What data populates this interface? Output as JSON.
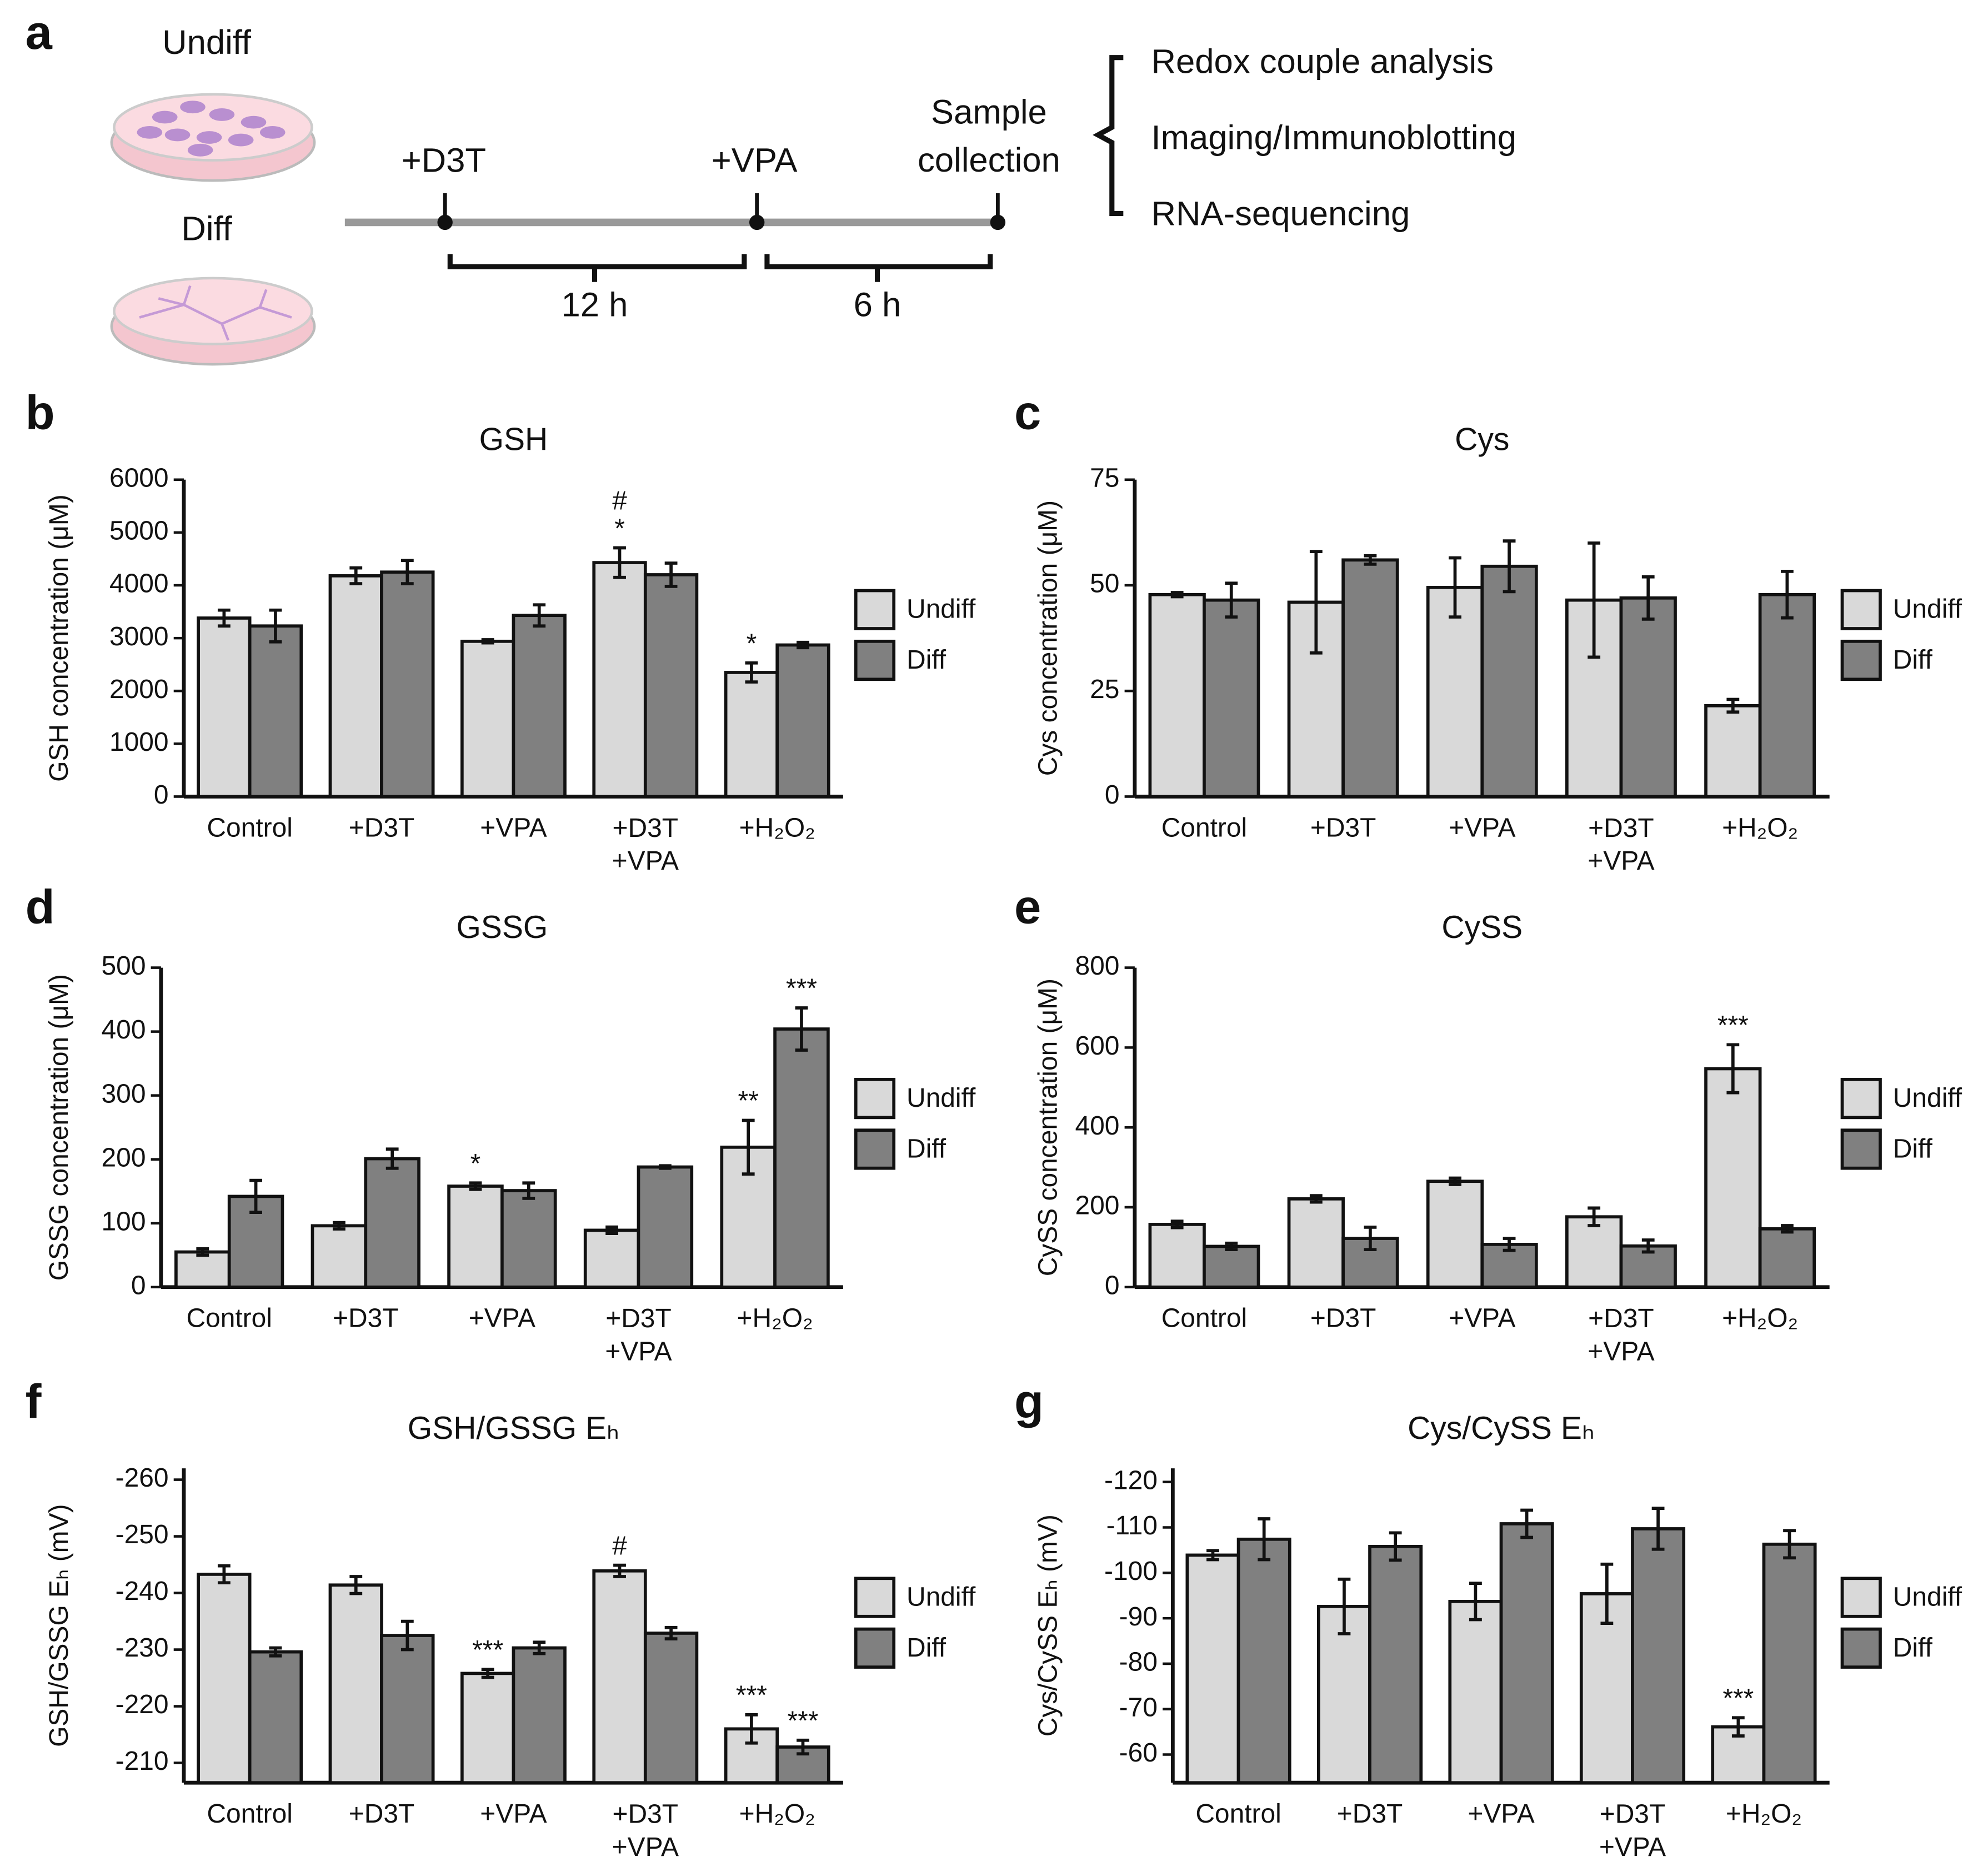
{
  "panel_a": {
    "panel": "a",
    "dish_labels": [
      "Undiff",
      "Diff"
    ],
    "steps": [
      "+D3T",
      "+VPA",
      "Sample collection"
    ],
    "durations": [
      "12 h",
      "6 h"
    ],
    "analyses": [
      "Redox couple analysis",
      "Imaging/Immunoblotting",
      "RNA-sequencing"
    ]
  },
  "chart_data": [
    {
      "type": "bar",
      "panel": "b",
      "title": "GSH",
      "ylabel": "GSH concentration (μM)",
      "categories": [
        "Control",
        "+D3T",
        "+VPA",
        "+D3T +VPA",
        "+H₂O₂"
      ],
      "series": [
        {
          "name": "Undiff",
          "color": "#d9d9d9",
          "values": [
            3380,
            4180,
            2940,
            4430,
            2350
          ],
          "errors": [
            150,
            150,
            30,
            280,
            180
          ],
          "annotations": [
            null,
            null,
            null,
            "# *",
            "*"
          ]
        },
        {
          "name": "Diff",
          "color": "#808080",
          "values": [
            3230,
            4250,
            3430,
            4200,
            2870
          ],
          "errors": [
            300,
            220,
            200,
            220,
            50
          ],
          "annotations": [
            null,
            null,
            null,
            null,
            null
          ]
        }
      ],
      "ylim": [
        0,
        6000
      ],
      "yticks": [
        0,
        1000,
        2000,
        3000,
        4000,
        5000,
        6000
      ],
      "legend": "right"
    },
    {
      "type": "bar",
      "panel": "c",
      "title": "Cys",
      "ylabel": "Cys concentration (μM)",
      "categories": [
        "Control",
        "+D3T",
        "+VPA",
        "+D3T +VPA",
        "+H₂O₂"
      ],
      "series": [
        {
          "name": "Undiff",
          "color": "#d9d9d9",
          "values": [
            47.8,
            46,
            49.5,
            46.5,
            21.5
          ],
          "errors": [
            0.5,
            12,
            7,
            13.5,
            1.5
          ],
          "annotations": [
            null,
            null,
            null,
            null,
            null
          ]
        },
        {
          "name": "Diff",
          "color": "#808080",
          "values": [
            46.5,
            56,
            54.5,
            47,
            47.8
          ],
          "errors": [
            4,
            1,
            6,
            5,
            5.5
          ],
          "annotations": [
            null,
            null,
            null,
            null,
            null
          ]
        }
      ],
      "ylim": [
        0,
        75
      ],
      "yticks": [
        0,
        25,
        50,
        75
      ],
      "legend": "right"
    },
    {
      "type": "bar",
      "panel": "d",
      "title": "GSSG",
      "ylabel": "GSSG concentration (μM)",
      "categories": [
        "Control",
        "+D3T",
        "+VPA",
        "+D3T +VPA",
        "+H₂O₂"
      ],
      "series": [
        {
          "name": "Undiff",
          "color": "#d9d9d9",
          "values": [
            55,
            96,
            158,
            89,
            219
          ],
          "errors": [
            5,
            5,
            5,
            5,
            42
          ],
          "annotations": [
            null,
            null,
            "*",
            null,
            "**"
          ]
        },
        {
          "name": "Diff",
          "color": "#808080",
          "values": [
            142,
            201,
            151,
            188,
            404
          ],
          "errors": [
            25,
            15,
            12,
            2,
            33
          ],
          "annotations": [
            null,
            null,
            null,
            null,
            "***"
          ]
        }
      ],
      "ylim": [
        0,
        500
      ],
      "yticks": [
        0,
        100,
        200,
        300,
        400,
        500
      ],
      "legend": "right"
    },
    {
      "type": "bar",
      "panel": "e",
      "title": "CySS",
      "ylabel": "CySS concentration (μM)",
      "categories": [
        "Control",
        "+D3T",
        "+VPA",
        "+D3T +VPA",
        "+H₂O₂"
      ],
      "series": [
        {
          "name": "Undiff",
          "color": "#d9d9d9",
          "values": [
            157,
            221,
            265,
            176,
            547
          ],
          "errors": [
            8,
            8,
            8,
            22,
            60
          ],
          "annotations": [
            null,
            null,
            null,
            null,
            "***"
          ]
        },
        {
          "name": "Diff",
          "color": "#808080",
          "values": [
            102,
            122,
            107,
            103,
            146
          ],
          "errors": [
            8,
            28,
            15,
            15,
            8
          ],
          "annotations": [
            null,
            null,
            null,
            null,
            null
          ]
        }
      ],
      "ylim": [
        0,
        800
      ],
      "yticks": [
        0,
        200,
        400,
        600,
        800
      ],
      "legend": "right"
    },
    {
      "type": "bar",
      "panel": "f",
      "title": "GSH/GSSG Eₕ",
      "ylabel": "GSH/GSSG Eₕ (mV)",
      "categories": [
        "Control",
        "+D3T",
        "+VPA",
        "+D3T +VPA",
        "+H₂O₂"
      ],
      "series": [
        {
          "name": "Undiff",
          "color": "#d9d9d9",
          "values": [
            -243.3,
            -241.4,
            -225.8,
            -243.9,
            -216
          ],
          "errors": [
            1.5,
            1.5,
            0.7,
            1,
            2.5
          ],
          "annotations": [
            null,
            null,
            "***",
            "#",
            "***"
          ]
        },
        {
          "name": "Diff",
          "color": "#808080",
          "values": [
            -229.6,
            -232.5,
            -230.3,
            -232.9,
            -212.8
          ],
          "errors": [
            0.7,
            2.5,
            1,
            1,
            1.2
          ],
          "annotations": [
            null,
            null,
            null,
            null,
            "***"
          ]
        }
      ],
      "ylim": [
        -206.5,
        -262
      ],
      "yticks": [
        -260,
        -250,
        -240,
        -230,
        -220,
        -210
      ],
      "legend": "right"
    },
    {
      "type": "bar",
      "panel": "g",
      "title": "Cys/CySS Eₕ",
      "ylabel": "Cys/CySS Eₕ (mV)",
      "categories": [
        "Control",
        "+D3T",
        "+VPA",
        "+D3T +VPA",
        "+H₂O₂"
      ],
      "series": [
        {
          "name": "Undiff",
          "color": "#d9d9d9",
          "values": [
            -103.9,
            -92.6,
            -93.7,
            -95.4,
            -66.1
          ],
          "errors": [
            1,
            6,
            4,
            6.5,
            2
          ],
          "annotations": [
            null,
            null,
            null,
            null,
            "***"
          ]
        },
        {
          "name": "Diff",
          "color": "#808080",
          "values": [
            -107.4,
            -105.8,
            -110.8,
            -109.7,
            -106.3
          ],
          "errors": [
            4.5,
            3,
            3,
            4.5,
            3
          ],
          "annotations": [
            null,
            null,
            null,
            null,
            null
          ]
        }
      ],
      "ylim": [
        -53.8,
        -123
      ],
      "yticks": [
        -120,
        -110,
        -100,
        -90,
        -80,
        -70,
        -60
      ],
      "legend": "right"
    }
  ]
}
